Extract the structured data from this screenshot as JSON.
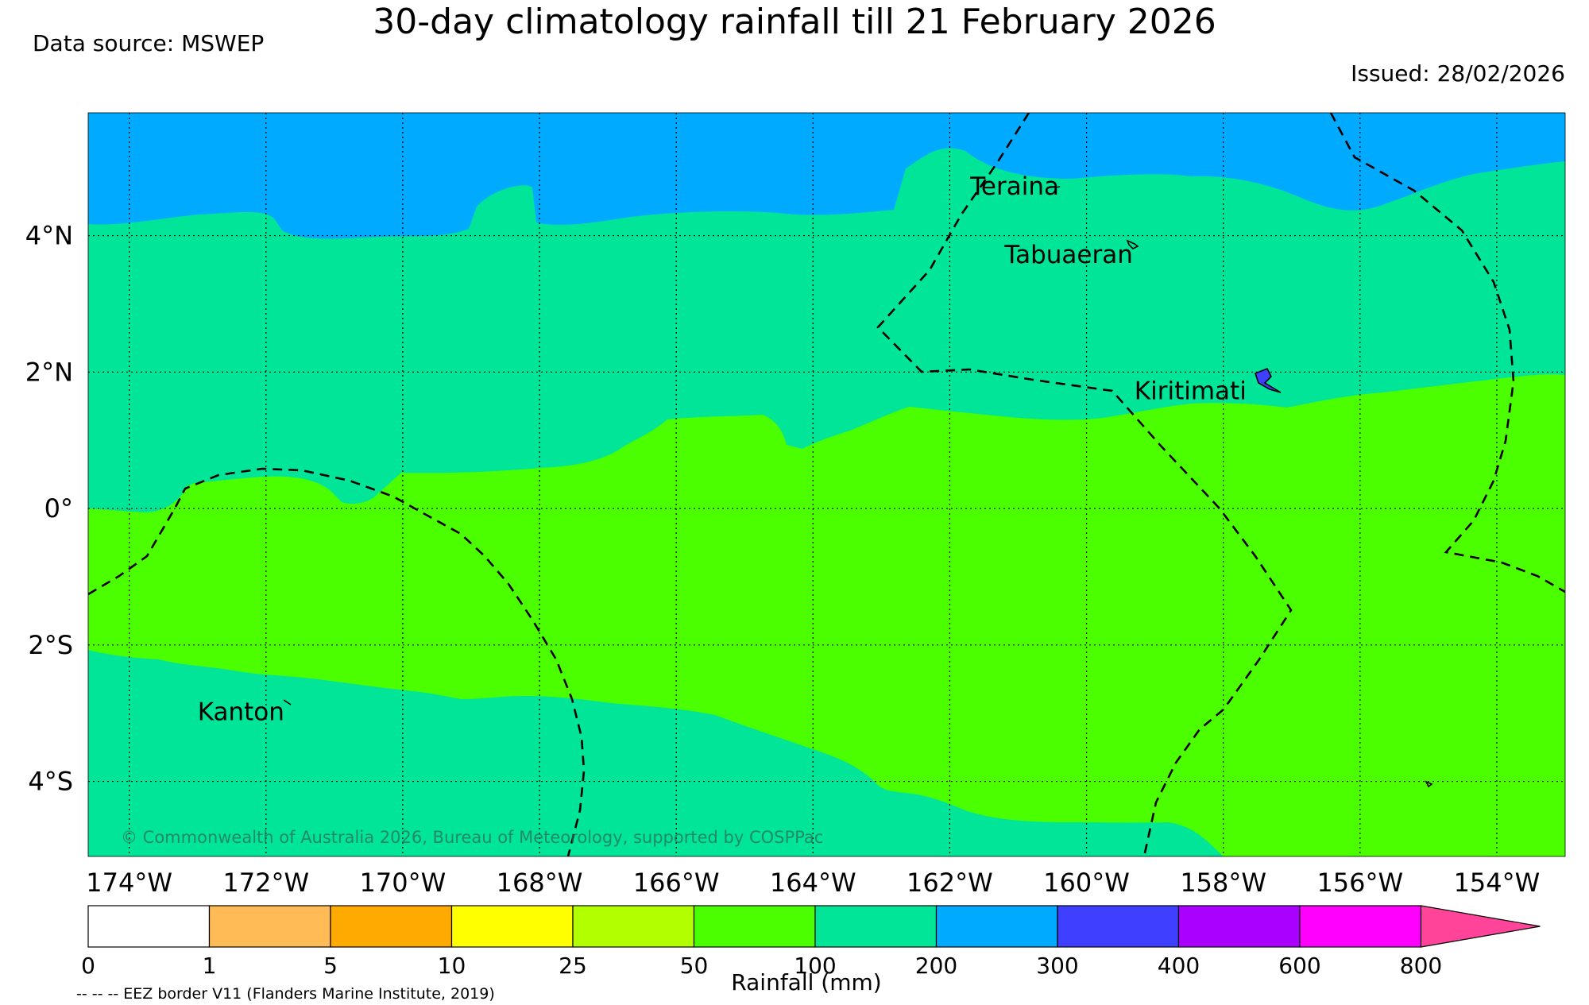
{
  "header": {
    "title": "30-day climatology rainfall till 21 February 2026",
    "source": "Data source: MSWEP",
    "issued": "Issued: 28/02/2026"
  },
  "map": {
    "extent": {
      "lon_min": -174.6,
      "lon_max": -153.0,
      "lat_min": -5.1,
      "lat_max": 5.8
    },
    "lon_ticks": [
      {
        "lon": -174,
        "label": "174°W"
      },
      {
        "lon": -172,
        "label": "172°W"
      },
      {
        "lon": -170,
        "label": "170°W"
      },
      {
        "lon": -168,
        "label": "168°W"
      },
      {
        "lon": -166,
        "label": "166°W"
      },
      {
        "lon": -164,
        "label": "164°W"
      },
      {
        "lon": -162,
        "label": "162°W"
      },
      {
        "lon": -160,
        "label": "160°W"
      },
      {
        "lon": -158,
        "label": "158°W"
      },
      {
        "lon": -156,
        "label": "156°W"
      },
      {
        "lon": -154,
        "label": "154°W"
      }
    ],
    "lat_ticks": [
      {
        "lat": 4,
        "label": "4°N"
      },
      {
        "lat": 2,
        "label": "2°N"
      },
      {
        "lat": 0,
        "label": "0°"
      },
      {
        "lat": -2,
        "label": "2°S"
      },
      {
        "lat": -4,
        "label": "4°S"
      }
    ],
    "places": [
      {
        "name": "Teraina",
        "lon": -161.7,
        "lat": 4.6
      },
      {
        "name": "Tabuaeran",
        "lon": -161.2,
        "lat": 3.6
      },
      {
        "name": "Kiritimati",
        "lon": -159.3,
        "lat": 1.6
      },
      {
        "name": "Kanton",
        "lon": -173.0,
        "lat": -3.1
      }
    ],
    "copyright": "© Commonwealth of Australia 2026, Bureau of Meteorology, supported by COSPPac",
    "colors": {
      "band_200_300": "#00aaff",
      "band_100_200": "#00e598",
      "band_50_100": "#4cff00",
      "eez": "#000000"
    }
  },
  "colorbar": {
    "label": "Rainfall (mm)",
    "bins": [
      {
        "label": "0",
        "color": "#ffffff"
      },
      {
        "label": "1",
        "color": "#ffbb55"
      },
      {
        "label": "5",
        "color": "#ffaa00"
      },
      {
        "label": "10",
        "color": "#ffff00"
      },
      {
        "label": "25",
        "color": "#b2ff00"
      },
      {
        "label": "50",
        "color": "#4cff00"
      },
      {
        "label": "100",
        "color": "#00e598"
      },
      {
        "label": "200",
        "color": "#00aaff"
      },
      {
        "label": "300",
        "color": "#3f3fff"
      },
      {
        "label": "400",
        "color": "#aa00ff"
      },
      {
        "label": "600",
        "color": "#ff00ff"
      },
      {
        "label": "800",
        "color": "#ff4499"
      }
    ]
  },
  "footer": {
    "eez_note": "-- -- -- EEZ border V11 (Flanders Marine Institute, 2019)"
  }
}
